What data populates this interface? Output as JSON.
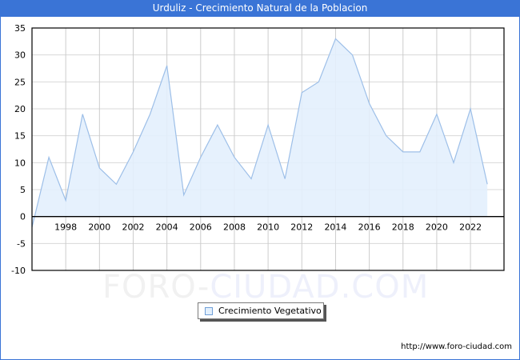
{
  "header": {
    "title": "Urduliz - Crecimiento Natural de la Poblacion"
  },
  "legend": {
    "label": "Crecimiento Vegetativo",
    "swatch_color": "#e3f0fd",
    "line_color": "#9dbfe8"
  },
  "footer": {
    "url": "http://www.foro-ciudad.com"
  },
  "watermark": {
    "part1": "FORO-",
    "part2": "CIUDAD.COM"
  },
  "colors": {
    "title_bar": "#3a74d6",
    "fill": "#e3f0fd",
    "line": "#9dbfe8",
    "grid": "#d8d8d8"
  },
  "chart_data": {
    "type": "area",
    "title": "Urduliz - Crecimiento Natural de la Poblacion",
    "xlabel": "",
    "ylabel": "",
    "x": [
      1996,
      1997,
      1998,
      1999,
      2000,
      2001,
      2002,
      2003,
      2004,
      2005,
      2006,
      2007,
      2008,
      2009,
      2010,
      2011,
      2012,
      2013,
      2014,
      2015,
      2016,
      2017,
      2018,
      2019,
      2020,
      2021,
      2022,
      2023
    ],
    "series": [
      {
        "name": "Crecimiento Vegetativo",
        "values": [
          -2,
          11,
          3,
          19,
          9,
          6,
          12,
          19,
          28,
          4,
          11,
          17,
          11,
          7,
          17,
          7,
          23,
          25,
          33,
          30,
          21,
          15,
          12,
          12,
          19,
          10,
          20,
          6
        ]
      }
    ],
    "x_tick_labels": [
      "1998",
      "2000",
      "2002",
      "2004",
      "2006",
      "2008",
      "2010",
      "2012",
      "2014",
      "2016",
      "2018",
      "2020",
      "2022"
    ],
    "y_tick_labels": [
      "35",
      "30",
      "25",
      "20",
      "15",
      "10",
      "5",
      "0",
      "-5",
      "-10"
    ],
    "ylim": [
      -10,
      35
    ],
    "xlim": [
      1996,
      2024
    ],
    "grid": true,
    "legend_position": "bottom-center"
  }
}
